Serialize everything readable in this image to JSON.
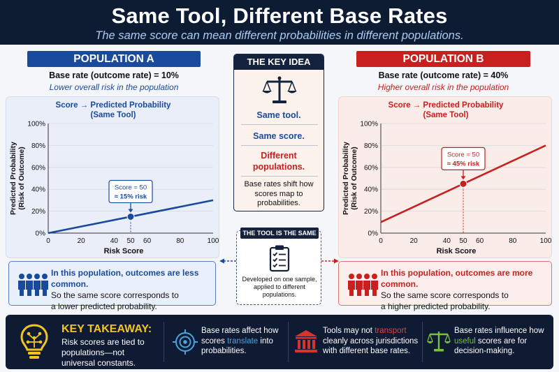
{
  "header": {
    "title": "Same Tool, Different Base Rates",
    "subtitle": "The same score can mean different probabilities in different populations."
  },
  "population_a": {
    "badge": "POPULATION A",
    "base_rate": "Base rate (outcome rate) = 10%",
    "description": "Lower overall risk in the population",
    "note_bold": "In this population, outcomes are less common.",
    "note_rest_1": "So the same score corresponds to",
    "note_rest_2": "a lower predicted probability.",
    "color": "#1a4a9b"
  },
  "population_b": {
    "badge": "POPULATION B",
    "base_rate": "Base rate (outcome rate) = 40%",
    "description": "Higher overall risk in the population",
    "note_bold": "In this population, outcomes are more common.",
    "note_rest_1": "So the same score corresponds to",
    "note_rest_2": "a higher predicted probability.",
    "color": "#c8201e"
  },
  "key_idea": {
    "title": "THE KEY IDEA",
    "line1": "Same tool.",
    "line2": "Same score.",
    "line3a": "Different",
    "line3b": "populations.",
    "body1": "Base rates shift how",
    "body2": "scores map to",
    "body3": "probabilities."
  },
  "tool": {
    "title": "THE TOOL IS THE SAME",
    "line1": "Developed on one sample,",
    "line2": "applied to different",
    "line3": "populations."
  },
  "footer": {
    "takeaway_title": "KEY TAKEAWAY:",
    "takeaway_1": "Risk scores are tied to",
    "takeaway_2": "populations—not",
    "takeaway_3": "universal constants.",
    "item1_1": "Base rates affect how",
    "item1_2a": "scores ",
    "item1_2b": "translate",
    "item1_2c": " into",
    "item1_3": "probabilities.",
    "item2_1a": "Tools may not ",
    "item2_1b": "transport",
    "item2_2": "cleanly across jurisdictions",
    "item2_3": "with different base rates.",
    "item3_1": "Base rates influence how",
    "item3_2a": "useful",
    "item3_2b": " scores are for",
    "item3_3": "decision-making."
  },
  "chart_data": [
    {
      "type": "line",
      "title_1": "Score → Predicted Probability",
      "title_2": "(Same Tool)",
      "xlabel": "Risk Score",
      "ylabel_1": "Predicted Probability",
      "ylabel_2": "(Risk of Outcome)",
      "xlim": [
        0,
        100
      ],
      "ylim": [
        0,
        100
      ],
      "x_ticks": [
        "0",
        "20",
        "40",
        "50",
        "60",
        "80",
        "100"
      ],
      "y_ticks": [
        "0%",
        "20%",
        "40%",
        "60%",
        "80%",
        "100%"
      ],
      "x": [
        0,
        50,
        100
      ],
      "y": [
        0,
        15,
        30
      ],
      "highlight": {
        "x": 50,
        "y": 15,
        "label_1": "Score = 50",
        "label_2": "≈ 15% risk"
      },
      "color": "#1a4a9b"
    },
    {
      "type": "line",
      "title_1": "Score → Predicted Probability",
      "title_2": "(Same Tool)",
      "xlabel": "Risk Score",
      "ylabel_1": "Predicted Probability",
      "ylabel_2": "(Risk of Outcome)",
      "xlim": [
        0,
        100
      ],
      "ylim": [
        0,
        100
      ],
      "x_ticks": [
        "0",
        "20",
        "40",
        "50",
        "60",
        "80",
        "100"
      ],
      "y_ticks": [
        "0%",
        "20%",
        "40%",
        "60%",
        "80%",
        "100%"
      ],
      "x": [
        0,
        50,
        100
      ],
      "y": [
        10,
        45,
        80
      ],
      "highlight": {
        "x": 50,
        "y": 45,
        "label_1": "Score = 50",
        "label_2": "≈ 45% risk"
      },
      "color": "#c8201e"
    }
  ]
}
